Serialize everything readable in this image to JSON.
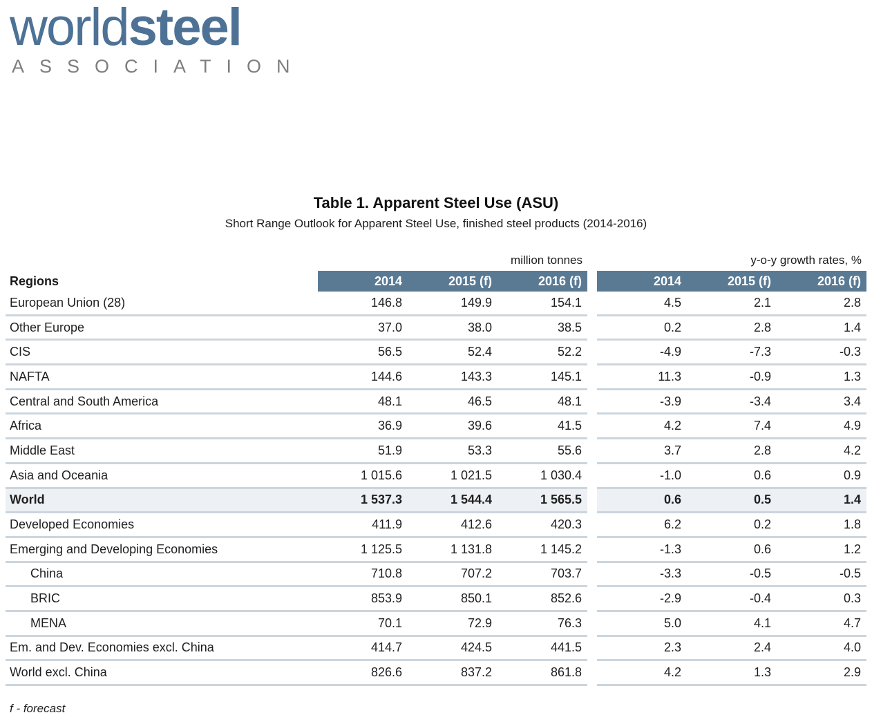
{
  "logo": {
    "word1": "world",
    "word2": "steel",
    "tagline": "ASSOCIATION"
  },
  "title": "Table 1. Apparent Steel Use (ASU)",
  "subtitle": "Short Range Outlook for Apparent Steel Use, finished steel products (2014-2016)",
  "table": {
    "regions_header": "Regions",
    "group1_label": "million tonnes",
    "group2_label": "y-o-y growth rates, %",
    "year_headers": [
      "2014",
      "2015 (f)",
      "2016 (f)"
    ],
    "rows": [
      {
        "region": "European Union (28)",
        "mt": [
          "146.8",
          "149.9",
          "154.1"
        ],
        "growth": [
          "4.5",
          "2.1",
          "2.8"
        ],
        "bold": false,
        "indent": false,
        "highlight": false
      },
      {
        "region": "Other Europe",
        "mt": [
          "37.0",
          "38.0",
          "38.5"
        ],
        "growth": [
          "0.2",
          "2.8",
          "1.4"
        ],
        "bold": false,
        "indent": false,
        "highlight": false
      },
      {
        "region": "CIS",
        "mt": [
          "56.5",
          "52.4",
          "52.2"
        ],
        "growth": [
          "-4.9",
          "-7.3",
          "-0.3"
        ],
        "bold": false,
        "indent": false,
        "highlight": false
      },
      {
        "region": "NAFTA",
        "mt": [
          "144.6",
          "143.3",
          "145.1"
        ],
        "growth": [
          "11.3",
          "-0.9",
          "1.3"
        ],
        "bold": false,
        "indent": false,
        "highlight": false
      },
      {
        "region": "Central and South America",
        "mt": [
          "48.1",
          "46.5",
          "48.1"
        ],
        "growth": [
          "-3.9",
          "-3.4",
          "3.4"
        ],
        "bold": false,
        "indent": false,
        "highlight": false
      },
      {
        "region": "Africa",
        "mt": [
          "36.9",
          "39.6",
          "41.5"
        ],
        "growth": [
          "4.2",
          "7.4",
          "4.9"
        ],
        "bold": false,
        "indent": false,
        "highlight": false
      },
      {
        "region": "Middle East",
        "mt": [
          "51.9",
          "53.3",
          "55.6"
        ],
        "growth": [
          "3.7",
          "2.8",
          "4.2"
        ],
        "bold": false,
        "indent": false,
        "highlight": false
      },
      {
        "region": "Asia and Oceania",
        "mt": [
          "1 015.6",
          "1 021.5",
          "1 030.4"
        ],
        "growth": [
          "-1.0",
          "0.6",
          "0.9"
        ],
        "bold": false,
        "indent": false,
        "highlight": false
      },
      {
        "region": "World",
        "mt": [
          "1 537.3",
          "1 544.4",
          "1 565.5"
        ],
        "growth": [
          "0.6",
          "0.5",
          "1.4"
        ],
        "bold": true,
        "indent": false,
        "highlight": true
      },
      {
        "region": "Developed Economies",
        "mt": [
          "411.9",
          "412.6",
          "420.3"
        ],
        "growth": [
          "6.2",
          "0.2",
          "1.8"
        ],
        "bold": false,
        "indent": false,
        "highlight": false
      },
      {
        "region": "Emerging and Developing Economies",
        "mt": [
          "1 125.5",
          "1 131.8",
          "1 145.2"
        ],
        "growth": [
          "-1.3",
          "0.6",
          "1.2"
        ],
        "bold": false,
        "indent": false,
        "highlight": false
      },
      {
        "region": "China",
        "mt": [
          "710.8",
          "707.2",
          "703.7"
        ],
        "growth": [
          "-3.3",
          "-0.5",
          "-0.5"
        ],
        "bold": false,
        "indent": true,
        "highlight": false
      },
      {
        "region": "BRIC",
        "mt": [
          "853.9",
          "850.1",
          "852.6"
        ],
        "growth": [
          "-2.9",
          "-0.4",
          "0.3"
        ],
        "bold": false,
        "indent": true,
        "highlight": false
      },
      {
        "region": "MENA",
        "mt": [
          "70.1",
          "72.9",
          "76.3"
        ],
        "growth": [
          "5.0",
          "4.1",
          "4.7"
        ],
        "bold": false,
        "indent": true,
        "highlight": false
      },
      {
        "region": "Em. and Dev. Economies excl. China",
        "mt": [
          "414.7",
          "424.5",
          "441.5"
        ],
        "growth": [
          "2.3",
          "2.4",
          "4.0"
        ],
        "bold": false,
        "indent": false,
        "highlight": false
      },
      {
        "region": "World excl. China",
        "mt": [
          "826.6",
          "837.2",
          "861.8"
        ],
        "growth": [
          "4.2",
          "1.3",
          "2.9"
        ],
        "bold": false,
        "indent": false,
        "highlight": false
      }
    ]
  },
  "footnote": "f - forecast",
  "colors": {
    "header_bg": "#5a7a94",
    "highlight_bg": "#edf0f4",
    "separator": "#ccd5dd",
    "logo_blue": "#4d7296",
    "tagline_gray": "#7e7e7e"
  }
}
